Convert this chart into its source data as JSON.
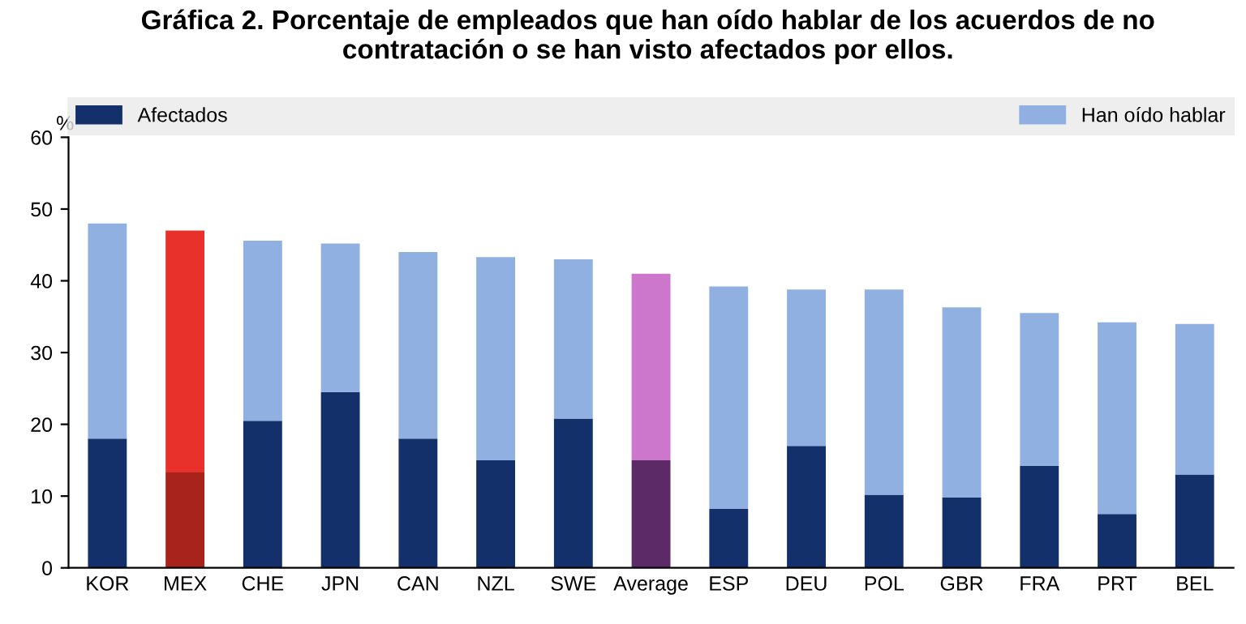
{
  "chart_data": {
    "type": "bar",
    "title": "Gráfica 2. Porcentaje de empleados que han oído hablar de los acuerdos de no\ncontratación o se han visto afectados por ellos.",
    "ylabel": "%",
    "categories": [
      "KOR",
      "MEX",
      "CHE",
      "JPN",
      "CAN",
      "NZL",
      "SWE",
      "Average",
      "ESP",
      "DEU",
      "POL",
      "GBR",
      "FRA",
      "PRT",
      "BEL"
    ],
    "stacked": true,
    "series": [
      {
        "name": "Afectados",
        "color": "#13306b",
        "colors": [
          "#13306b",
          "#a8231c",
          "#13306b",
          "#13306b",
          "#13306b",
          "#13306b",
          "#13306b",
          "#5d2a68",
          "#13306b",
          "#13306b",
          "#13306b",
          "#13306b",
          "#13306b",
          "#13306b",
          "#13306b"
        ],
        "values": [
          18,
          13.3,
          20.5,
          24.5,
          18,
          15,
          20.8,
          15,
          8.2,
          17,
          10.2,
          9.8,
          14.2,
          7.5,
          13
        ]
      },
      {
        "name": "Han oído hablar",
        "color": "#8fb0e0",
        "colors": [
          "#8fb0e0",
          "#e8312a",
          "#8fb0e0",
          "#8fb0e0",
          "#8fb0e0",
          "#8fb0e0",
          "#8fb0e0",
          "#cc77cc",
          "#8fb0e0",
          "#8fb0e0",
          "#8fb0e0",
          "#8fb0e0",
          "#8fb0e0",
          "#8fb0e0",
          "#8fb0e0"
        ],
        "values": [
          30,
          33.7,
          25.1,
          20.7,
          26,
          28.3,
          22.2,
          26,
          31,
          21.8,
          28.6,
          26.5,
          21.3,
          26.7,
          21
        ]
      }
    ],
    "ylim": [
      0,
      60
    ],
    "yticks": [
      0,
      10,
      20,
      30,
      40,
      50,
      60
    ],
    "grid": false,
    "legend": "top"
  }
}
